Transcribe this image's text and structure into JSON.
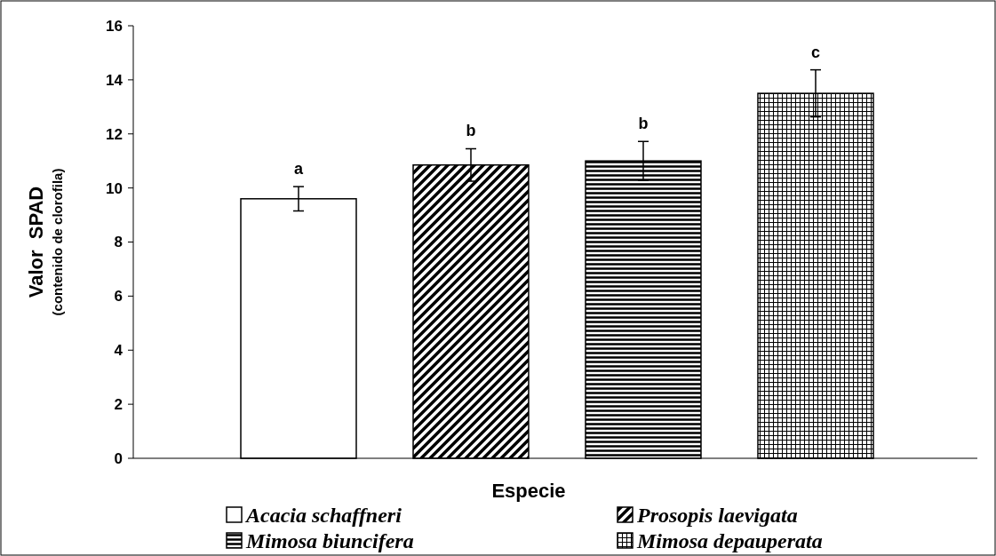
{
  "chart_data": {
    "type": "bar",
    "xlabel": "Especie",
    "ylabel": "Valor  SPAD\n(contenido de clorofila)",
    "categories": [
      null,
      null,
      null,
      null
    ],
    "series": [
      {
        "name": "Acacia schaffneri",
        "color": "#000000",
        "values": [
          9.6,
          null,
          null,
          null
        ],
        "errors": [
          0.45,
          null,
          null,
          null
        ]
      },
      {
        "name": "Prosopis laevigata",
        "color": "#000000",
        "values": [
          null,
          10.85,
          null,
          null
        ],
        "errors": [
          null,
          0.6,
          null,
          null
        ]
      },
      {
        "name": "Mimosa biuncifera",
        "color": "#000000",
        "values": [
          null,
          null,
          11.0,
          null
        ],
        "errors": [
          null,
          null,
          0.72,
          null
        ]
      },
      {
        "name": "Mimosa depauperata",
        "color": "#000000",
        "values": [
          null,
          null,
          null,
          13.5
        ],
        "errors": [
          null,
          null,
          null,
          0.87
        ]
      }
    ],
    "ylim": [
      0,
      16
    ],
    "yticks": [
      0,
      2,
      4,
      6,
      8,
      10,
      12,
      14,
      16
    ],
    "tick_labels": "y",
    "legend": "bottom",
    "annotations": [
      "a",
      "b",
      "b",
      "c"
    ]
  }
}
